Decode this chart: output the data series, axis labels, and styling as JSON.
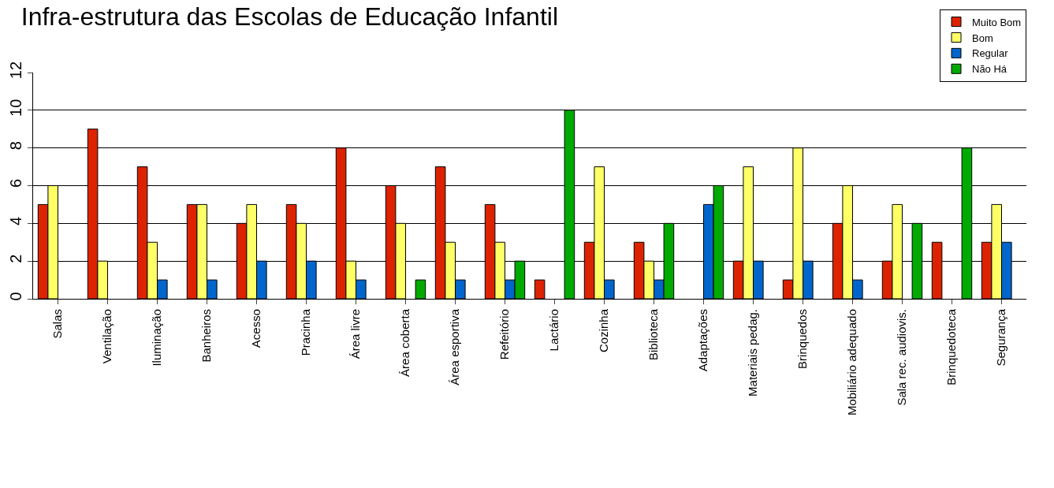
{
  "chart_data": {
    "type": "bar",
    "title": "Infra-estrutura das Escolas de Educação Infantil",
    "categories": [
      "Salas",
      "Ventilação",
      "Iluminação",
      "Banheiros",
      "Acesso",
      "Pracinha",
      "Área livre",
      "Área coberta",
      "Área esportiva",
      "Refeitório",
      "Lactário",
      "Cozinha",
      "Biblioteca",
      "Adaptações",
      "Materiais pedag.",
      "Brinquedos",
      "Mobiliário adequado",
      "Sala rec. audiovis.",
      "Brinquedoteca",
      "Segurança"
    ],
    "series": [
      {
        "name": "Muito Bom",
        "color": "#dd2200",
        "values": [
          5,
          9,
          7,
          5,
          4,
          5,
          8,
          6,
          7,
          5,
          1,
          3,
          3,
          null,
          2,
          1,
          4,
          2,
          3,
          3
        ]
      },
      {
        "name": "Bom",
        "color": "#ffff66",
        "values": [
          6,
          2,
          3,
          5,
          5,
          4,
          2,
          4,
          3,
          3,
          null,
          7,
          2,
          null,
          7,
          8,
          6,
          5,
          null,
          5
        ]
      },
      {
        "name": "Regular",
        "color": "#0066cc",
        "values": [
          null,
          null,
          1,
          1,
          2,
          2,
          1,
          null,
          1,
          1,
          null,
          1,
          1,
          5,
          2,
          2,
          1,
          null,
          null,
          3
        ]
      },
      {
        "name": "Não Há",
        "color": "#00aa00",
        "values": [
          null,
          null,
          null,
          null,
          null,
          null,
          null,
          1,
          null,
          2,
          10,
          null,
          4,
          6,
          null,
          null,
          null,
          4,
          8,
          null
        ]
      }
    ],
    "ylim": [
      0,
      12
    ],
    "yticks": [
      0,
      2,
      4,
      6,
      8,
      10,
      12
    ],
    "grid": "y",
    "legend": "top right"
  }
}
